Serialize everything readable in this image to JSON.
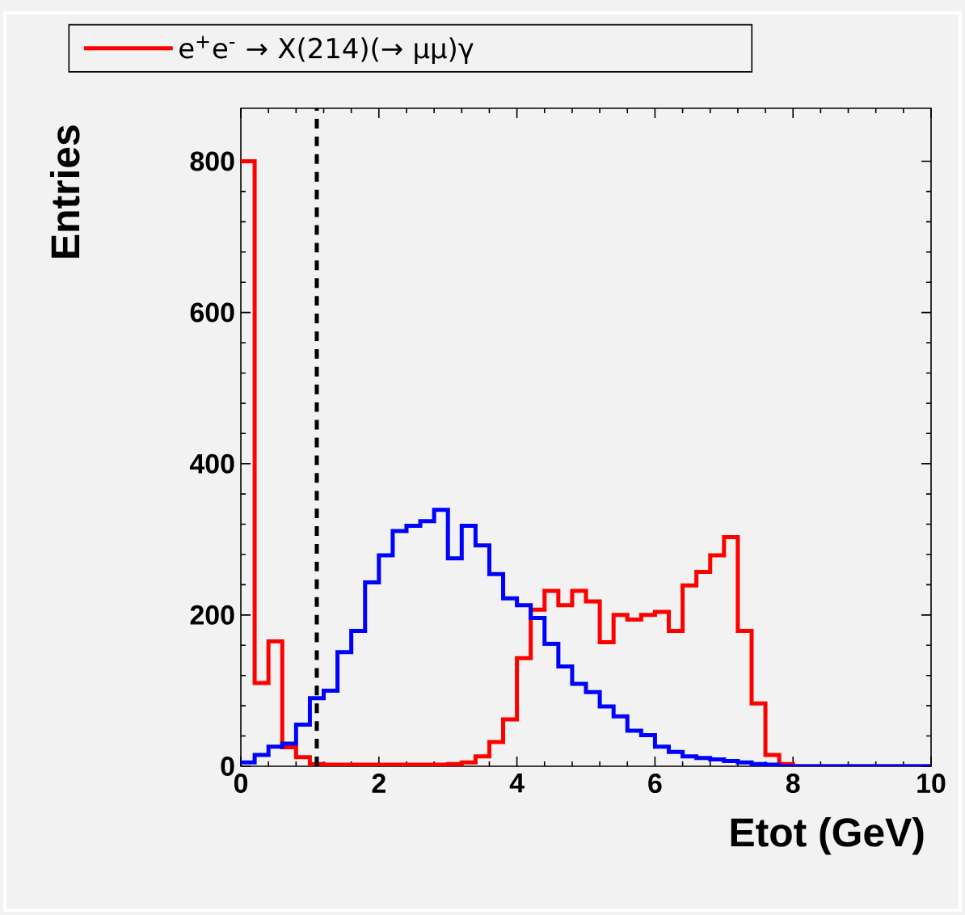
{
  "chart_data": {
    "type": "histogram",
    "xlabel": "Etot (GeV)",
    "ylabel": "Entries",
    "bins": [
      0,
      0.2,
      0.4,
      0.6,
      0.8,
      1.0,
      1.2,
      1.4,
      1.6,
      1.8,
      2.0,
      2.2,
      2.4,
      2.6,
      2.8,
      3.0,
      3.2,
      3.4,
      3.6,
      3.8,
      4.0,
      4.2,
      4.4,
      4.6,
      4.8,
      5.0,
      5.2,
      5.4,
      5.6,
      5.8,
      6.0,
      6.2,
      6.4,
      6.6,
      6.8,
      7.0,
      7.2,
      7.4,
      7.6,
      7.8,
      8.0,
      8.2,
      8.4,
      8.6,
      8.8,
      9.0,
      9.2,
      9.4,
      9.6,
      9.8,
      10.0
    ],
    "series": [
      {
        "name": "e$^{+}$e$^{-}$ → X(214)(→ μμ)γ",
        "color": "#ff0000",
        "values": [
          800,
          110,
          165,
          25,
          12,
          3,
          2,
          2,
          2,
          2,
          2,
          2,
          2,
          2,
          2,
          3,
          5,
          13,
          32,
          62,
          143,
          207,
          232,
          213,
          232,
          218,
          164,
          200,
          194,
          200,
          204,
          179,
          239,
          257,
          279,
          303,
          179,
          83,
          15,
          3,
          0,
          0,
          0,
          0,
          0,
          0,
          0,
          0,
          0,
          0
        ]
      },
      {
        "color": "#0000ff",
        "values": [
          5,
          15,
          26,
          30,
          55,
          90,
          100,
          151,
          179,
          243,
          279,
          311,
          318,
          324,
          339,
          275,
          318,
          292,
          254,
          222,
          213,
          196,
          162,
          132,
          109,
          98,
          79,
          66,
          47,
          41,
          26,
          19,
          13,
          11,
          9,
          7,
          5,
          3,
          2,
          0,
          0,
          0,
          0,
          0,
          0,
          0,
          0,
          0,
          0,
          0
        ]
      }
    ],
    "xlim": [
      0,
      10
    ],
    "ylim": [
      0,
      870
    ],
    "xticks": [
      0,
      2,
      4,
      6,
      8,
      10
    ],
    "yticks": [
      0,
      200,
      400,
      600,
      800
    ],
    "ref_lines": [
      {
        "axis": "x",
        "value": 1.1,
        "color": "#000000",
        "line_style": "dashed"
      }
    ],
    "legend": "top left",
    "grid": false
  }
}
